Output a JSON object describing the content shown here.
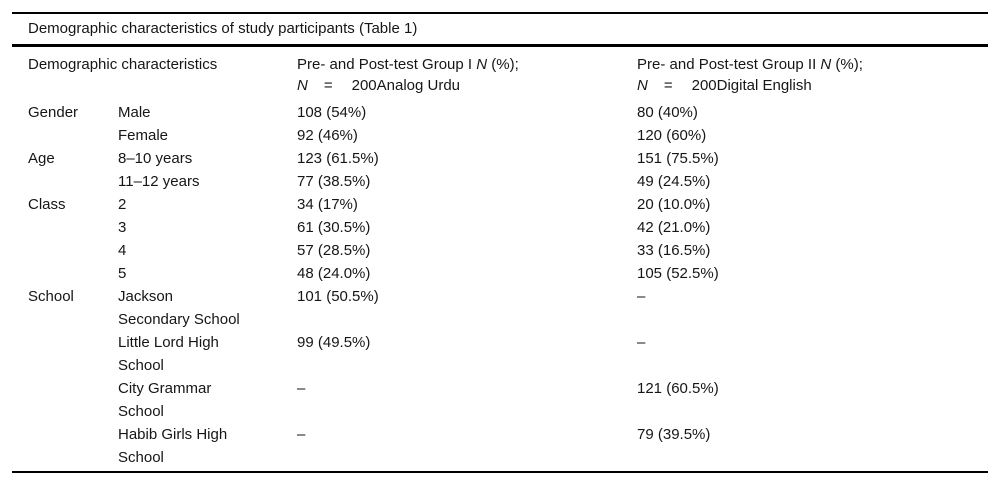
{
  "table": {
    "caption": "Demographic characteristics of study participants (Table 1)",
    "header": {
      "demographic": "Demographic characteristics",
      "group1": {
        "line1_prefix": "Pre- and Post-test Group I ",
        "line1_n": "N",
        "line1_suffix": " (%);",
        "line2_n": "N",
        "line2_eq": "=",
        "line2_value": "200Analog Urdu"
      },
      "group2": {
        "line1_prefix": "Pre- and Post-test Group II ",
        "line1_n": "N",
        "line1_suffix": " (%);",
        "line2_n": "N",
        "line2_eq": "=",
        "line2_value": "200Digital English"
      }
    },
    "rows": [
      {
        "category": "Gender",
        "label": "Male",
        "group1": "108 (54%)",
        "group2": "80 (40%)"
      },
      {
        "category": "",
        "label": "Female",
        "group1": "92 (46%)",
        "group2": "120 (60%)"
      },
      {
        "category": "Age",
        "label": "8–10 years",
        "group1": "123 (61.5%)",
        "group2": "151 (75.5%)"
      },
      {
        "category": "",
        "label": "11–12 years",
        "group1": "77 (38.5%)",
        "group2": "49 (24.5%)"
      },
      {
        "category": "Class",
        "label": "2",
        "group1": "34 (17%)",
        "group2": "20 (10.0%)"
      },
      {
        "category": "",
        "label": "3",
        "group1": "61 (30.5%)",
        "group2": "42 (21.0%)"
      },
      {
        "category": "",
        "label": "4",
        "group1": "57 (28.5%)",
        "group2": "33 (16.5%)"
      },
      {
        "category": "",
        "label": "5",
        "group1": "48 (24.0%)",
        "group2": "105 (52.5%)"
      },
      {
        "category": "School",
        "label": "Jackson\nSecondary School",
        "group1": "101 (50.5%)",
        "group2": "–"
      },
      {
        "category": "",
        "label": "Little Lord High\nSchool",
        "group1": "99 (49.5%)",
        "group2": "–"
      },
      {
        "category": "",
        "label": "City Grammar\nSchool",
        "group1": "–",
        "group2": "121 (60.5%)"
      },
      {
        "category": "",
        "label": "Habib Girls High\nSchool",
        "group1": "–",
        "group2": "79 (39.5%)"
      }
    ]
  }
}
